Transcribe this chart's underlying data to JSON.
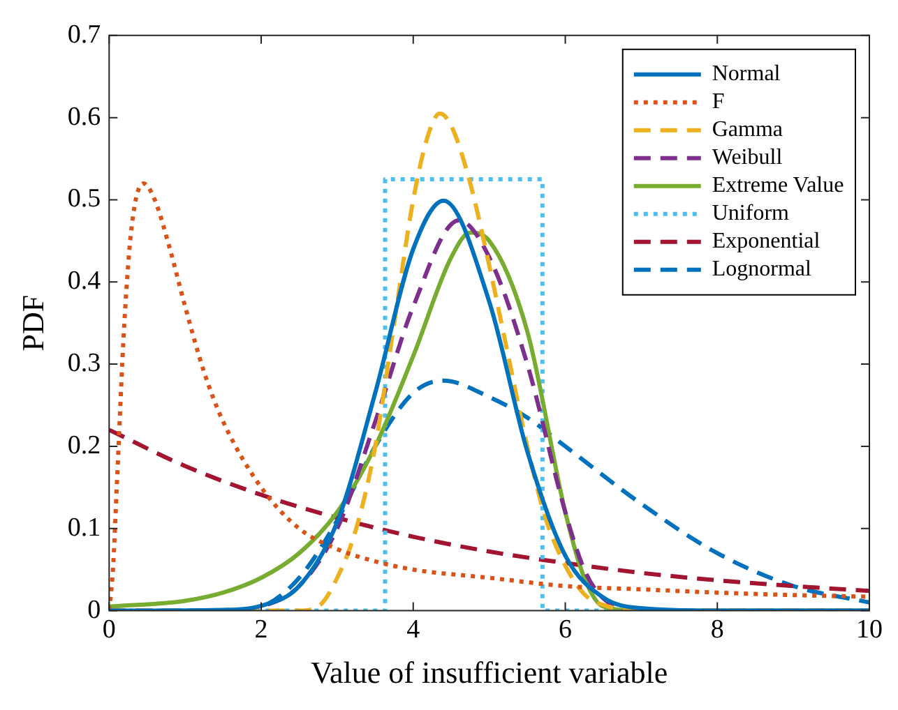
{
  "chart_data": {
    "type": "line",
    "xlabel": "Value of insufficient variable",
    "ylabel": "PDF",
    "xlim": [
      0,
      10
    ],
    "xticks": [
      0,
      2,
      4,
      6,
      8,
      10
    ],
    "ylim": [
      0,
      0.7
    ],
    "yticks": [
      0,
      0.1,
      0.2,
      0.3,
      0.4,
      0.5,
      0.6,
      0.7
    ],
    "grid": false,
    "legend": "top right",
    "marker": "none",
    "series": [
      {
        "name": "Normal",
        "color": "#0072bd",
        "line_style": "solid",
        "x": [
          0,
          1.5,
          2,
          2.5,
          3,
          3.5,
          4,
          4.4,
          5,
          5.5,
          6,
          6.5,
          7,
          8,
          10
        ],
        "values": [
          0,
          0.001,
          0.006,
          0.03,
          0.108,
          0.265,
          0.44,
          0.499,
          0.376,
          0.194,
          0.067,
          0.016,
          0.003,
          0,
          0
        ]
      },
      {
        "name": "F",
        "color": "#d95319",
        "line_style": "dotted",
        "x": [
          0,
          0.05,
          0.1,
          0.2,
          0.3,
          0.45,
          0.6,
          0.8,
          1,
          1.25,
          1.5,
          2,
          2.5,
          3,
          3.5,
          4,
          5,
          6,
          7,
          8,
          9,
          10
        ],
        "values": [
          0,
          0.05,
          0.15,
          0.35,
          0.47,
          0.52,
          0.5,
          0.44,
          0.37,
          0.29,
          0.23,
          0.15,
          0.1,
          0.075,
          0.06,
          0.05,
          0.04,
          0.03,
          0.026,
          0.022,
          0.019,
          0.017
        ]
      },
      {
        "name": "Gamma",
        "color": "#edb120",
        "line_style": "dashed",
        "x": [
          0,
          2.5,
          2.75,
          3,
          3.25,
          3.5,
          3.75,
          4,
          4.2,
          4.35,
          4.5,
          4.75,
          5,
          5.25,
          5.5,
          5.75,
          6,
          6.25,
          6.5,
          7,
          10
        ],
        "values": [
          0,
          0,
          0.005,
          0.04,
          0.1,
          0.2,
          0.35,
          0.5,
          0.58,
          0.605,
          0.59,
          0.52,
          0.42,
          0.31,
          0.2,
          0.11,
          0.055,
          0.02,
          0.007,
          0,
          0
        ]
      },
      {
        "name": "Weibull",
        "color": "#7e2f8e",
        "line_style": "dashed",
        "x": [
          0,
          1.5,
          2,
          2.5,
          3,
          3.5,
          4,
          4.6,
          5,
          5.5,
          6,
          6.25,
          6.5,
          7,
          10
        ],
        "values": [
          0,
          0,
          0.005,
          0.03,
          0.1,
          0.23,
          0.37,
          0.475,
          0.43,
          0.3,
          0.12,
          0.05,
          0.015,
          0,
          0
        ]
      },
      {
        "name": "Extreme Value",
        "color": "#77ac30",
        "line_style": "solid",
        "x": [
          0,
          1,
          1.5,
          2,
          2.5,
          3,
          3.5,
          4,
          4.5,
          4.75,
          5,
          5.5,
          6,
          6.25,
          6.5,
          7,
          10
        ],
        "values": [
          0.005,
          0.012,
          0.022,
          0.04,
          0.07,
          0.12,
          0.2,
          0.31,
          0.43,
          0.46,
          0.45,
          0.34,
          0.12,
          0.04,
          0.005,
          0,
          0
        ]
      },
      {
        "name": "Uniform",
        "color": "#4dbeee",
        "line_style": "dotted",
        "x": [
          0,
          3.63,
          3.63,
          5.7,
          5.7,
          10
        ],
        "values": [
          0,
          0,
          0.525,
          0.525,
          0,
          0
        ]
      },
      {
        "name": "Exponential",
        "color": "#a2142f",
        "line_style": "dashed",
        "x": [
          0,
          1,
          2,
          3,
          4,
          5,
          6,
          7,
          8,
          9,
          10
        ],
        "values": [
          0.22,
          0.176,
          0.141,
          0.113,
          0.09,
          0.072,
          0.058,
          0.046,
          0.037,
          0.03,
          0.024
        ]
      },
      {
        "name": "Lognormal",
        "color": "#0072bd",
        "line_style": "dashed",
        "x": [
          0,
          1.5,
          2,
          2.5,
          3,
          3.5,
          4,
          4.4,
          5,
          5.5,
          6,
          7,
          8,
          9,
          10
        ],
        "values": [
          0,
          0,
          0.005,
          0.04,
          0.11,
          0.2,
          0.265,
          0.28,
          0.26,
          0.235,
          0.2,
          0.13,
          0.07,
          0.03,
          0.01
        ]
      }
    ]
  }
}
